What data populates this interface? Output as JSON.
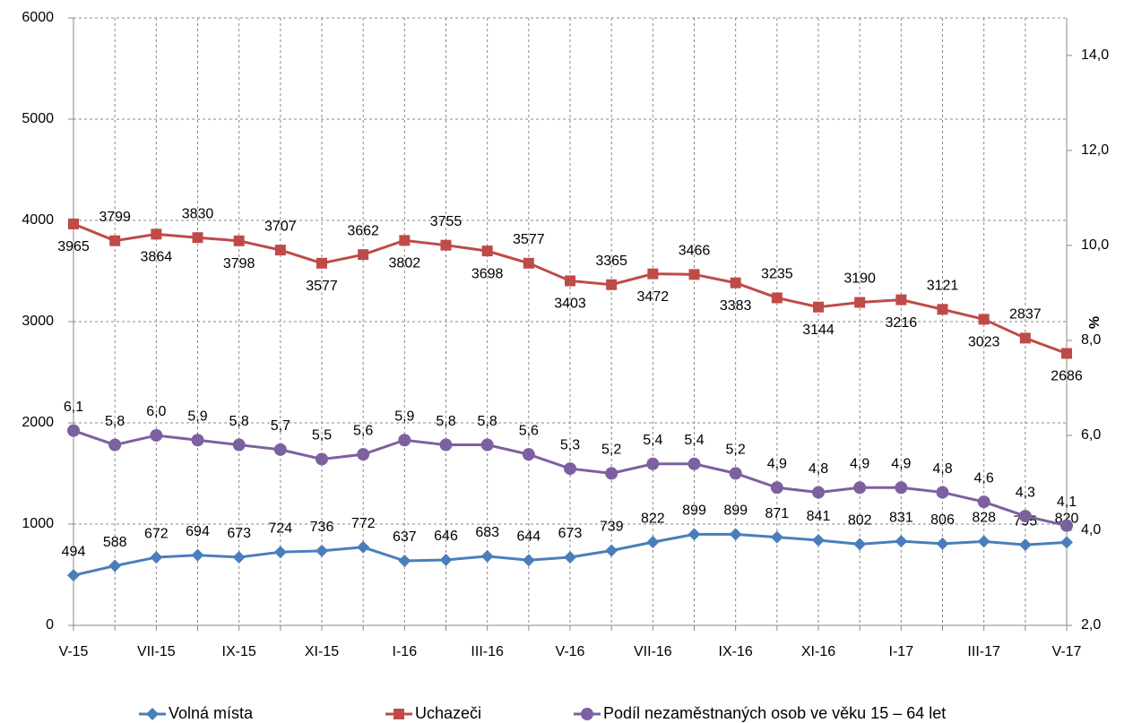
{
  "chart_data": {
    "type": "line",
    "categories": [
      "V-15",
      null,
      "VII-15",
      null,
      "IX-15",
      null,
      "XI-15",
      null,
      "I-16",
      null,
      "III-16",
      null,
      "V-16",
      null,
      "VII-16",
      null,
      "IX-16",
      null,
      "XI-16",
      null,
      "I-17",
      null,
      "III-17",
      null,
      "V-17"
    ],
    "series": [
      {
        "name": "Volná místa",
        "color": "#4a7ebb",
        "marker": "diamond",
        "values": [
          494,
          588,
          672,
          694,
          673,
          724,
          736,
          772,
          637,
          646,
          683,
          644,
          673,
          739,
          822,
          899,
          899,
          871,
          841,
          802,
          831,
          806,
          828,
          795,
          820
        ]
      },
      {
        "name": "Uchazeči",
        "color": "#be4b48",
        "marker": "square",
        "values": [
          3965,
          3799,
          3864,
          3830,
          3798,
          3707,
          3577,
          3662,
          3802,
          3755,
          3698,
          3577,
          3403,
          3365,
          3472,
          3466,
          3383,
          3235,
          3144,
          3190,
          3216,
          3121,
          3023,
          2837,
          2686
        ]
      },
      {
        "name": "Podíl nezaměstnaných osob ve věku 15 – 64 let",
        "color": "#7d60a0",
        "marker": "circle",
        "axis": "y2",
        "values": [
          6.1,
          5.8,
          6.0,
          5.9,
          5.8,
          5.7,
          5.5,
          5.6,
          5.9,
          5.8,
          5.8,
          5.6,
          5.3,
          5.2,
          5.4,
          5.4,
          5.2,
          4.9,
          4.8,
          4.9,
          4.9,
          4.8,
          4.6,
          4.3,
          4.1
        ],
        "value_labels": [
          "6,1",
          "5,8",
          "6,0",
          "5,9",
          "5,8",
          "5,7",
          "5,5",
          "5,6",
          "5,9",
          "5,8",
          "5,8",
          "5,6",
          "5,3",
          "5,2",
          "5,4",
          "5,4",
          "5,2",
          "4,9",
          "4,8",
          "4,9",
          "4,9",
          "4,8",
          "4,6",
          "4,3",
          "4,1"
        ]
      }
    ],
    "ylim": [
      0,
      6000
    ],
    "yticks": [
      0,
      1000,
      2000,
      3000,
      4000,
      5000,
      6000
    ],
    "y2lim": [
      2,
      14.79
    ],
    "y2ticks": [
      {
        "value": 2,
        "label": "2,0"
      },
      {
        "value": 4,
        "label": "4,0"
      },
      {
        "value": 6,
        "label": "6,0"
      },
      {
        "value": 8,
        "label": "8,0"
      },
      {
        "value": 10,
        "label": "10,0"
      },
      {
        "value": 12,
        "label": "12,0"
      },
      {
        "value": 14,
        "label": "14,0"
      }
    ],
    "y2label": "%",
    "grid": true,
    "legend": "bottom"
  }
}
